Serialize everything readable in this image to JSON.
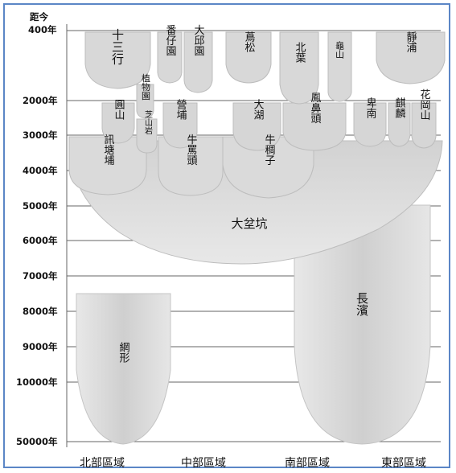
{
  "header": {
    "line1": "距今",
    "line2": "400年"
  },
  "eras": [
    "2000年",
    "3000年",
    "4000年",
    "5000年",
    "6000年",
    "7000年",
    "8000年",
    "9000年",
    "10000年",
    "50000年"
  ],
  "regions": [
    "北部區域",
    "中部區域",
    "南部區域",
    "東部區域"
  ],
  "sites": {
    "shisanhang": "十三行",
    "fanziyuan": "番仔園",
    "dabuyuan": "大邱園",
    "niusong": "蔦松",
    "beiye": "北葉",
    "guishan": "龜山",
    "jingpu": "靜浦",
    "zhiwuyuan": "植物園",
    "yuanshan": "圓山",
    "zhishanyan": "芝山岩",
    "yingpu": "營埔",
    "dahu": "大湖",
    "fengbitou": "鳳鼻頭",
    "beinan": "卑南",
    "qilin": "麒麟",
    "huagangshan": "花岡山",
    "xuntangpu": "訊塘埔",
    "niumatou": "牛罵頭",
    "niuchouzi": "牛稠子",
    "dabenkeng": "大坌坑",
    "changbin": "長濱",
    "wangxing": "網形"
  }
}
